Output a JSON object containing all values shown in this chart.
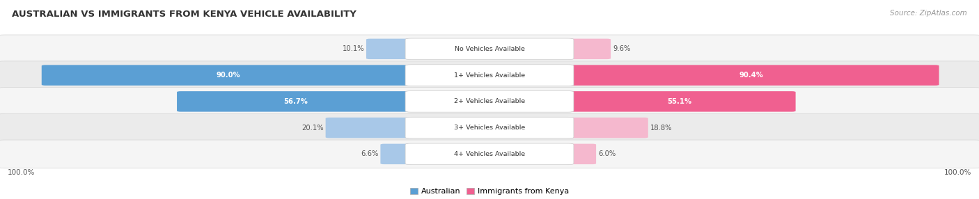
{
  "title": "AUSTRALIAN VS IMMIGRANTS FROM KENYA VEHICLE AVAILABILITY",
  "source": "Source: ZipAtlas.com",
  "categories": [
    "No Vehicles Available",
    "1+ Vehicles Available",
    "2+ Vehicles Available",
    "3+ Vehicles Available",
    "4+ Vehicles Available"
  ],
  "australian_values": [
    10.1,
    90.0,
    56.7,
    20.1,
    6.6
  ],
  "kenya_values": [
    9.6,
    90.4,
    55.1,
    18.8,
    6.0
  ],
  "australian_color_light": "#a8c8e8",
  "australian_color_dark": "#5b9fd4",
  "kenya_color_light": "#f5b8ce",
  "kenya_color_dark": "#f06090",
  "row_bg_light": "#f5f5f5",
  "row_bg_dark": "#ebebeb",
  "label_color_dark": "#333333",
  "label_color_mid": "#666666",
  "title_color": "#333333",
  "legend_australian": "Australian",
  "legend_kenya": "Immigrants from Kenya",
  "max_value": 100.0,
  "figsize": [
    14.06,
    2.86
  ],
  "dpi": 100
}
